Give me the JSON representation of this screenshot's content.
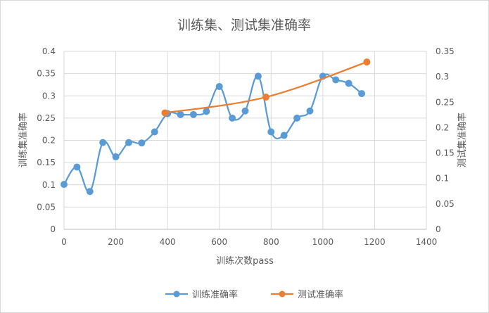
{
  "chart_data": {
    "type": "line",
    "title": "训练集、测试集准确率",
    "xlabel": "训练次数pass",
    "ylabel": "训练集准确率",
    "y2label": "测试集准确率",
    "xlim": [
      0,
      1400
    ],
    "ylim": [
      0,
      0.4
    ],
    "y2lim": [
      0,
      0.35
    ],
    "xticks": [
      "0",
      "200",
      "400",
      "600",
      "800",
      "1000",
      "1200",
      "1400"
    ],
    "yticks": [
      "0",
      "0.05",
      "0.1",
      "0.15",
      "0.2",
      "0.25",
      "0.3",
      "0.35",
      "0.4"
    ],
    "y2ticks": [
      "0",
      "0.05",
      "0.1",
      "0.15",
      "0.2",
      "0.25",
      "0.3",
      "0.35"
    ],
    "grid": true,
    "legend_position": "bottom",
    "series": [
      {
        "name": "训练准确率",
        "axis": "left",
        "color": "#5B9BD5",
        "smooth": true,
        "marker": "circle",
        "x": [
          0,
          50,
          100,
          150,
          200,
          250,
          300,
          350,
          400,
          450,
          500,
          550,
          600,
          650,
          700,
          750,
          800,
          850,
          900,
          950,
          1000,
          1050,
          1100,
          1150
        ],
        "y": [
          0.101,
          0.14,
          0.085,
          0.195,
          0.163,
          0.195,
          0.194,
          0.219,
          0.26,
          0.258,
          0.258,
          0.265,
          0.321,
          0.25,
          0.266,
          0.344,
          0.219,
          0.211,
          0.25,
          0.266,
          0.344,
          0.336,
          0.328,
          0.305
        ]
      },
      {
        "name": "测试准确率",
        "axis": "right",
        "color": "#ED7D31",
        "smooth": true,
        "marker": "circle",
        "x": [
          390,
          780,
          1170
        ],
        "y": [
          0.229,
          0.26,
          0.329
        ]
      }
    ]
  }
}
